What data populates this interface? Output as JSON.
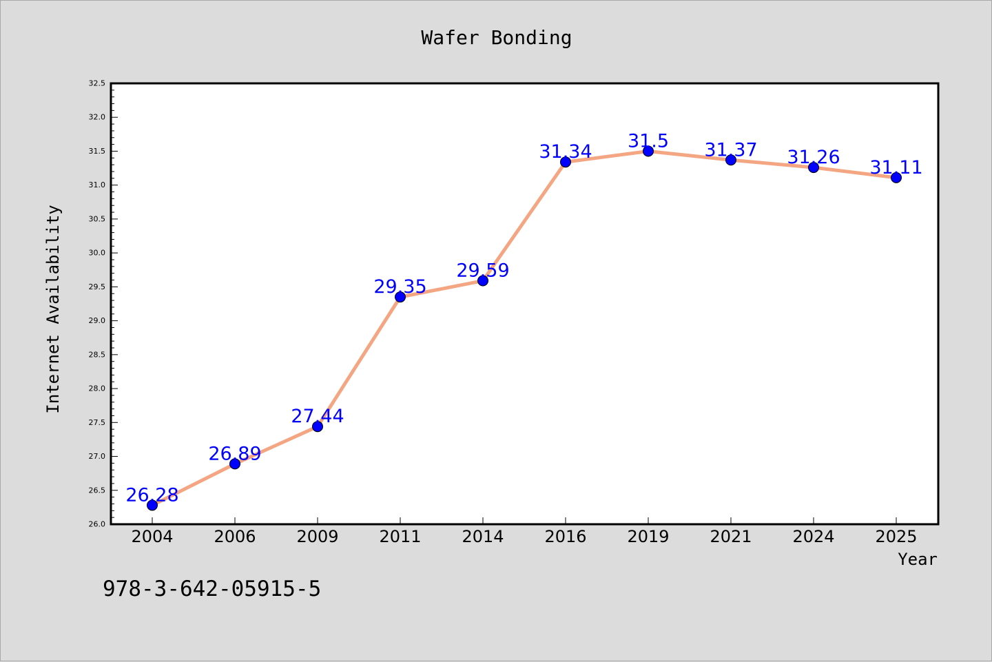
{
  "chart_data": {
    "type": "line",
    "title": "Wafer Bonding",
    "xlabel": "Year",
    "ylabel": "Internet Availability",
    "categories": [
      "2004",
      "2006",
      "2009",
      "2011",
      "2014",
      "2016",
      "2019",
      "2021",
      "2024",
      "2025"
    ],
    "series": [
      {
        "values": [
          26.28,
          26.89,
          27.44,
          29.35,
          29.59,
          31.34,
          31.5,
          31.37,
          31.26,
          31.11
        ],
        "line_color": "#f4a582",
        "marker_color": "#0000ff"
      }
    ],
    "data_labels": [
      "26.28",
      "26.89",
      "27.44",
      "29.35",
      "29.59",
      "31.34",
      "31.5",
      "31.37",
      "31.26",
      "31.11"
    ],
    "ylim": [
      26.0,
      32.5
    ],
    "yticks": [
      "26.0",
      "26.5",
      "27.0",
      "27.5",
      "28.0",
      "28.5",
      "29.0",
      "29.5",
      "30.0",
      "30.5",
      "31.0",
      "31.5",
      "32.0",
      "32.5"
    ],
    "grid": false,
    "legend": "none",
    "background_color": "#dcdcdc",
    "plot_background_color": "#ffffff",
    "label_color": "#0000ff"
  },
  "footer": {
    "isbn": "978-3-642-05915-5"
  }
}
